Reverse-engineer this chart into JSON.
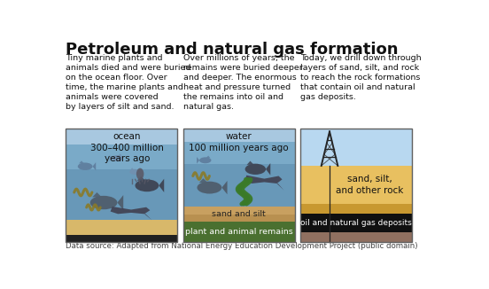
{
  "title": "Petroleum and natural gas formation",
  "source": "Data source: Adapted from National Energy Education Development Project (public domain)",
  "panel1_text": "Tiny marine plants and\nanimals died and were buried\non the ocean floor. Over\ntime, the marine plants and\nanimals were covered\nby layers of silt and sand.",
  "panel2_text": "Over millions of years, the\nremains were buried deeper\nand deeper. The enormous\nheat and pressure turned\nthe remains into oil and\nnatural gas.",
  "panel3_text": "Today, we drill down through\nlayers of sand, silt, and rock\nto reach the rock formations\nthat contain oil and natural\ngas deposits.",
  "panel1_label": "ocean\n300–400 million\nyears ago",
  "panel2_label": "water\n100 million years ago",
  "bg": "#ffffff",
  "p1_water_top": "#a8c8e0",
  "p1_water_mid": "#6898b8",
  "p1_water_deep": "#5080a0",
  "p1_sand": "#d8b86a",
  "p1_dark": "#202020",
  "p2_water_top": "#a8c8e0",
  "p2_water_mid": "#6898b8",
  "p2_sand_silt": "#c8a060",
  "p2_sand_silt2": "#b89050",
  "p2_remains": "#4a7030",
  "p3_sky": "#b8d8f0",
  "p3_yellow_light": "#e8c060",
  "p3_yellow_dark": "#c89830",
  "p3_black": "#101010",
  "p3_brown": "#907060",
  "edge_color": "#606060",
  "title_fs": 13,
  "body_fs": 6.8,
  "label_fs": 7.5,
  "source_fs": 6.2
}
